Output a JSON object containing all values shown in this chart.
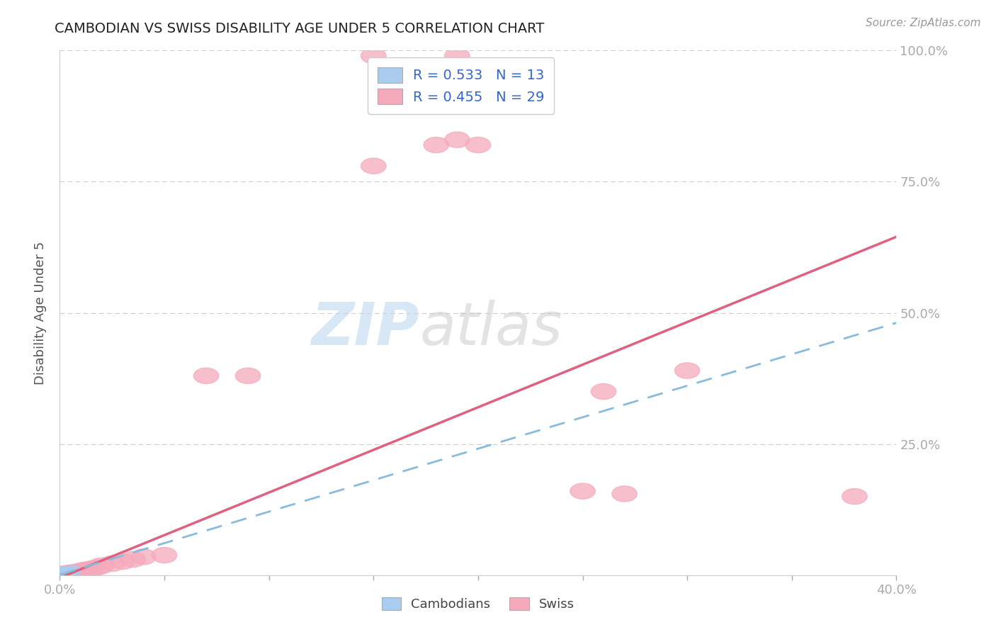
{
  "title": "CAMBODIAN VS SWISS DISABILITY AGE UNDER 5 CORRELATION CHART",
  "source": "Source: ZipAtlas.com",
  "ylabel": "Disability Age Under 5",
  "xlim": [
    0.0,
    0.4
  ],
  "ylim": [
    0.0,
    1.0
  ],
  "xtick_vals": [
    0.0,
    0.05,
    0.1,
    0.15,
    0.2,
    0.25,
    0.3,
    0.35,
    0.4
  ],
  "ytick_vals": [
    0.0,
    0.25,
    0.5,
    0.75,
    1.0
  ],
  "cambodian_color": "#aaccee",
  "swiss_color": "#f5aabb",
  "swiss_line_color": "#e06080",
  "cambodian_line_color": "#88bbdd",
  "cambodian_R": 0.533,
  "cambodian_N": 13,
  "swiss_R": 0.455,
  "swiss_N": 29,
  "background_color": "#ffffff",
  "grid_color": "#cccccc",
  "title_color": "#222222",
  "axis_label_color": "#555555",
  "tick_color": "#5588cc",
  "legend_text_color": "#3366cc",
  "swiss_line_slope": 1.625,
  "swiss_line_intercept": -0.005,
  "cam_line_slope": 1.2,
  "cam_line_intercept": 0.001,
  "swiss_points_x": [
    0.001,
    0.002,
    0.003,
    0.005,
    0.006,
    0.008,
    0.01,
    0.012,
    0.015,
    0.018,
    0.02,
    0.025,
    0.03,
    0.035,
    0.04,
    0.05,
    0.07,
    0.09,
    0.15,
    0.18,
    0.19,
    0.2,
    0.25,
    0.27,
    0.15,
    0.19,
    0.38,
    0.26,
    0.3
  ],
  "swiss_points_y": [
    0.001,
    0.002,
    0.003,
    0.004,
    0.005,
    0.006,
    0.008,
    0.01,
    0.012,
    0.015,
    0.018,
    0.022,
    0.026,
    0.03,
    0.035,
    0.038,
    0.38,
    0.38,
    0.78,
    0.82,
    0.83,
    0.82,
    0.16,
    0.155,
    0.99,
    0.99,
    0.15,
    0.35,
    0.39
  ],
  "cam_points_x": [
    0.001,
    0.001,
    0.001,
    0.001,
    0.001,
    0.002,
    0.002,
    0.002,
    0.003,
    0.003,
    0.004,
    0.005,
    0.006
  ],
  "cam_points_y": [
    0.001,
    0.002,
    0.003,
    0.004,
    0.005,
    0.002,
    0.004,
    0.006,
    0.003,
    0.005,
    0.005,
    0.006,
    0.008
  ]
}
